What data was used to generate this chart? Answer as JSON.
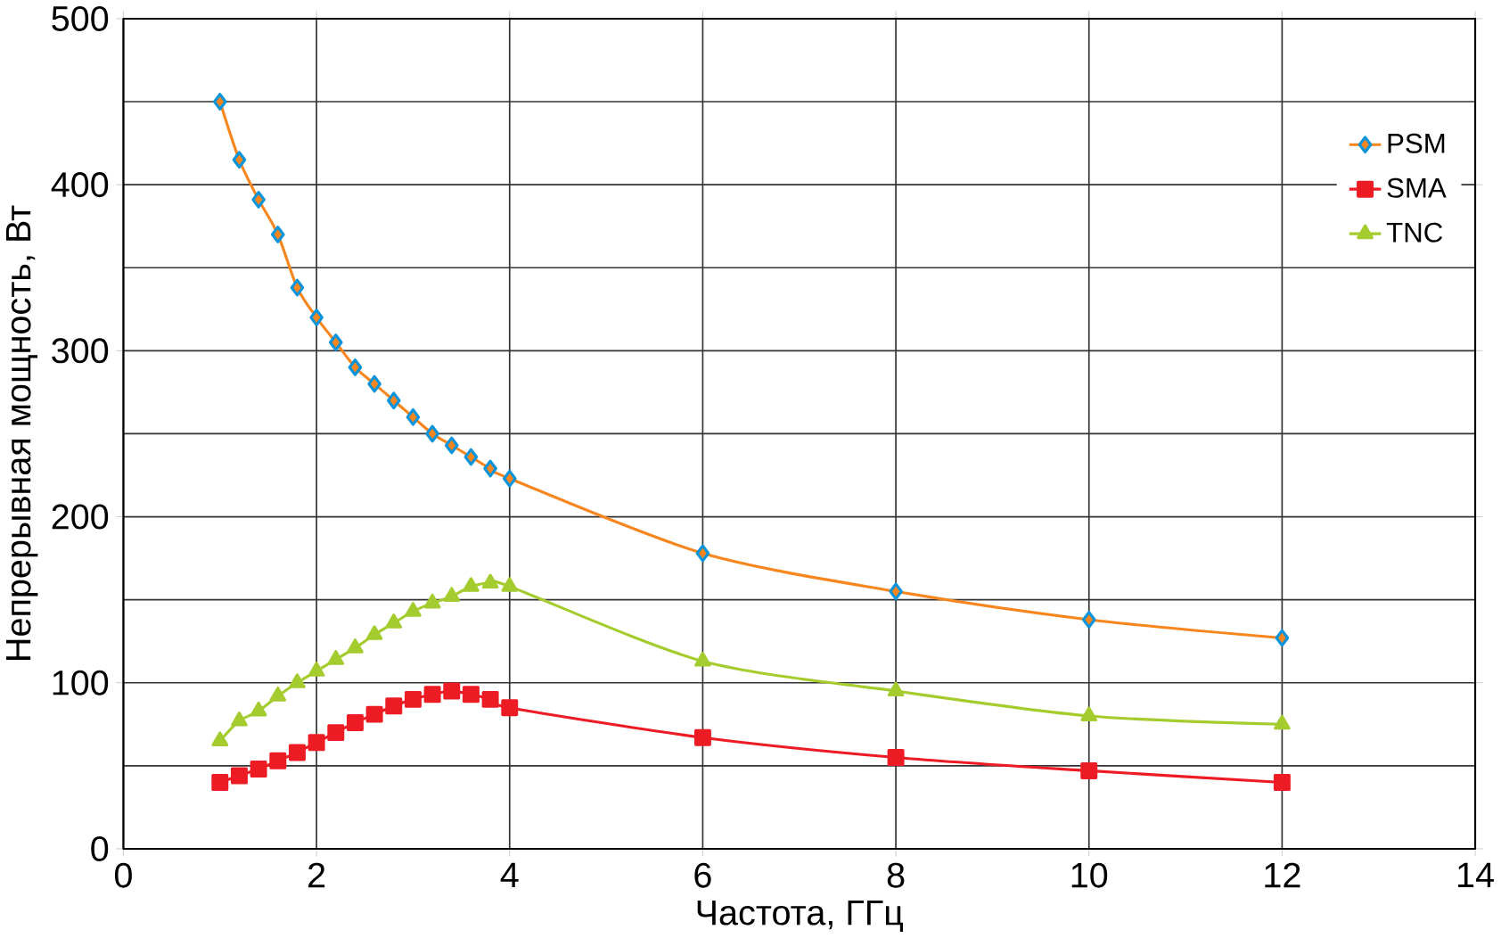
{
  "chart_data": {
    "type": "line",
    "xlabel": "Частота, ГГц",
    "ylabel": "Непрерывная мощность, Вт",
    "x": [
      1,
      1.2,
      1.4,
      1.6,
      1.8,
      2.0,
      2.2,
      2.4,
      2.6,
      2.8,
      3.0,
      3.2,
      3.4,
      3.6,
      3.8,
      4.0,
      6,
      8,
      10,
      12
    ],
    "series": [
      {
        "name": "PSM",
        "color": "#f7861e",
        "marker": "diamond",
        "values": [
          450,
          415,
          391,
          370,
          338,
          320,
          305,
          290,
          280,
          270,
          260,
          250,
          243,
          236,
          229,
          223,
          178,
          155,
          138,
          127
        ]
      },
      {
        "name": "SMA",
        "color": "#ed1c24",
        "marker": "square",
        "values": [
          40,
          44,
          48,
          53,
          58,
          64,
          70,
          76,
          81,
          86,
          90,
          93,
          95,
          93,
          90,
          85,
          67,
          55,
          47,
          40
        ]
      },
      {
        "name": "TNC",
        "color": "#a4cc2e",
        "marker": "triangle",
        "values": [
          65,
          77,
          83,
          92,
          100,
          107,
          114,
          121,
          129,
          136,
          143,
          148,
          152,
          158,
          160,
          158,
          113,
          95,
          80,
          75
        ]
      }
    ],
    "xlim": [
      0,
      14
    ],
    "ylim": [
      0,
      500
    ],
    "xticks": [
      0,
      2,
      4,
      6,
      8,
      10,
      12,
      14
    ],
    "yticks": [
      0,
      100,
      200,
      300,
      400,
      500
    ],
    "grid": true,
    "legend": "top right",
    "line_style": "solid"
  }
}
